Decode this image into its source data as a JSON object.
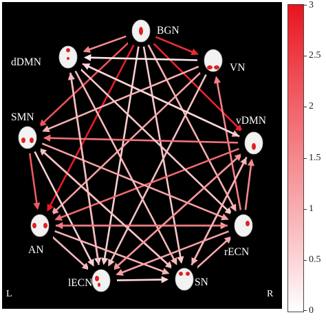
{
  "nodes": [
    {
      "id": "BGN",
      "label": "BGN",
      "icon": "brain-axial-thumbnail"
    },
    {
      "id": "VN",
      "label": "VN",
      "icon": "brain-axial-thumbnail"
    },
    {
      "id": "vDMN",
      "label": "vDMN",
      "icon": "brain-axial-thumbnail"
    },
    {
      "id": "rECN",
      "label": "rECN",
      "icon": "brain-axial-thumbnail"
    },
    {
      "id": "SN",
      "label": "SN",
      "icon": "brain-axial-thumbnail"
    },
    {
      "id": "lECN",
      "label": "lECN",
      "icon": "brain-axial-thumbnail"
    },
    {
      "id": "AN",
      "label": "AN",
      "icon": "brain-axial-thumbnail"
    },
    {
      "id": "SMN",
      "label": "SMN",
      "icon": "brain-axial-thumbnail"
    },
    {
      "id": "dDMN",
      "label": "dDMN",
      "icon": "brain-axial-thumbnail"
    }
  ],
  "edges": [
    {
      "from": "BGN",
      "to": "VN",
      "weight": 2.7
    },
    {
      "from": "BGN",
      "to": "vDMN",
      "weight": 2.8
    },
    {
      "from": "BGN",
      "to": "AN",
      "weight": 2.9
    },
    {
      "from": "BGN",
      "to": "dDMN",
      "weight": 1.5
    },
    {
      "from": "BGN",
      "to": "SMN",
      "weight": 2.2
    },
    {
      "from": "BGN",
      "to": "SN",
      "weight": 0.7
    },
    {
      "from": "BGN",
      "to": "lECN",
      "weight": 0.6
    },
    {
      "from": "BGN",
      "to": "rECN",
      "weight": 1.0
    },
    {
      "from": "VN",
      "to": "dDMN",
      "weight": 0.3
    },
    {
      "from": "VN",
      "to": "SMN",
      "weight": 1.0
    },
    {
      "from": "VN",
      "to": "AN",
      "weight": 1.2
    },
    {
      "from": "VN",
      "to": "lECN",
      "weight": 0.8
    },
    {
      "from": "rECN",
      "to": "VN",
      "weight": 1.6
    },
    {
      "from": "vDMN",
      "to": "SMN",
      "weight": 1.8
    },
    {
      "from": "vDMN",
      "to": "AN",
      "weight": 1.9
    },
    {
      "from": "dDMN",
      "to": "vDMN",
      "weight": 1.1
    },
    {
      "from": "vDMN",
      "to": "lECN",
      "weight": 1.3
    },
    {
      "from": "vDMN",
      "to": "SN",
      "weight": 0.9
    },
    {
      "from": "vDMN",
      "to": "dDMN",
      "weight": 0.5
    },
    {
      "from": "rECN",
      "to": "vDMN",
      "weight": 1.5
    },
    {
      "from": "SMN",
      "to": "AN",
      "weight": 2.1
    },
    {
      "from": "SMN",
      "to": "rECN",
      "weight": 1.2
    },
    {
      "from": "SMN",
      "to": "SN",
      "weight": 0.8
    },
    {
      "from": "SMN",
      "to": "lECN",
      "weight": 0.6
    },
    {
      "from": "dDMN",
      "to": "SN",
      "weight": 0.9
    },
    {
      "from": "dDMN",
      "to": "lECN",
      "weight": 0.4
    },
    {
      "from": "dDMN",
      "to": "rECN",
      "weight": 0.7
    },
    {
      "from": "lECN",
      "to": "dDMN",
      "weight": 0.9
    },
    {
      "from": "AN",
      "to": "rECN",
      "weight": 1.1
    },
    {
      "from": "AN",
      "to": "SN",
      "weight": 1.0
    },
    {
      "from": "AN",
      "to": "lECN",
      "weight": 0.9
    },
    {
      "from": "rECN",
      "to": "AN",
      "weight": 1.7
    },
    {
      "from": "lECN",
      "to": "SN",
      "weight": 0.5
    },
    {
      "from": "SN",
      "to": "rECN",
      "weight": 1.1
    },
    {
      "from": "SN",
      "to": "vDMN",
      "weight": 1.0
    },
    {
      "from": "rECN",
      "to": "lECN",
      "weight": 1.2
    },
    {
      "from": "SN",
      "to": "SMN",
      "weight": 0.8
    },
    {
      "from": "lECN",
      "to": "vDMN",
      "weight": 1.4
    }
  ],
  "corner_labels": {
    "left": "L",
    "right": "R"
  },
  "colorbar": {
    "min": 0,
    "max": 3,
    "colors": [
      "#ffffff",
      "#e8141e"
    ],
    "ticks": [
      "3",
      "2.5",
      "2",
      "1.5",
      "1",
      "0.5",
      "0"
    ]
  },
  "colors": {
    "background": "#000000",
    "high": "#e8141e",
    "low": "#ffffff"
  }
}
